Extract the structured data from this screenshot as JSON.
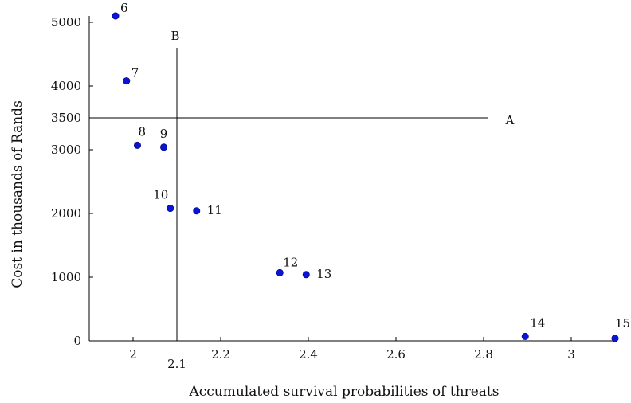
{
  "chart_data": {
    "type": "scatter",
    "title": "",
    "xlabel": "Accumulated survival probabilities of threats",
    "ylabel": "Cost in thousands of Rands",
    "xlim": [
      1.9,
      3.1
    ],
    "ylim": [
      0,
      5100
    ],
    "grid": false,
    "legend": "none",
    "marker_color": "#0a14d6",
    "x_ticks": [
      {
        "value": 2,
        "label": "2"
      },
      {
        "value": 2.2,
        "label": "2.2"
      },
      {
        "value": 2.4,
        "label": "2.4"
      },
      {
        "value": 2.6,
        "label": "2.6"
      },
      {
        "value": 2.8,
        "label": "2.8"
      },
      {
        "value": 3,
        "label": "3"
      }
    ],
    "y_ticks": [
      {
        "value": 0,
        "label": "0"
      },
      {
        "value": 1000,
        "label": "1000"
      },
      {
        "value": 2000,
        "label": "2000"
      },
      {
        "value": 3000,
        "label": "3000"
      },
      {
        "value": 4000,
        "label": "4000"
      },
      {
        "value": 5000,
        "label": "5000"
      }
    ],
    "points": [
      {
        "label": "6",
        "x": 1.96,
        "y": 5100
      },
      {
        "label": "7",
        "x": 1.985,
        "y": 4080
      },
      {
        "label": "8",
        "x": 2.01,
        "y": 3070
      },
      {
        "label": "9",
        "x": 2.07,
        "y": 3040
      },
      {
        "label": "10",
        "x": 2.085,
        "y": 2080
      },
      {
        "label": "11",
        "x": 2.145,
        "y": 2040
      },
      {
        "label": "12",
        "x": 2.335,
        "y": 1070
      },
      {
        "label": "13",
        "x": 2.395,
        "y": 1040
      },
      {
        "label": "14",
        "x": 2.895,
        "y": 70
      },
      {
        "label": "15",
        "x": 3.1,
        "y": 40
      }
    ],
    "reference_lines": [
      {
        "name": "A",
        "orientation": "horizontal",
        "value": 3500,
        "value_label": "3500",
        "x_end": 2.81
      },
      {
        "name": "B",
        "orientation": "vertical",
        "value": 2.1,
        "value_label": "2.1",
        "y_end": 4600
      }
    ]
  }
}
